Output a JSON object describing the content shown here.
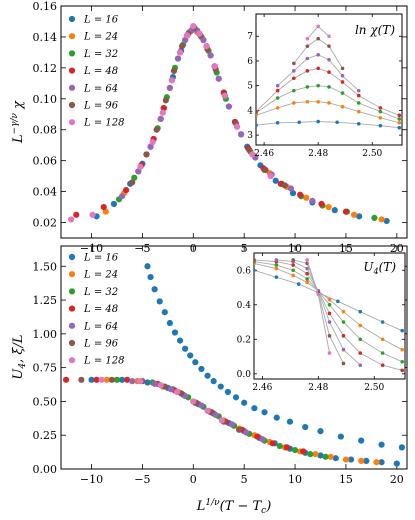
{
  "colors": [
    "#1f77b4",
    "#ff7f0e",
    "#2ca02c",
    "#d62728",
    "#9467bd",
    "#8c564b",
    "#e377c2"
  ],
  "legend_labels": [
    "L = 16",
    "L = 24",
    "L = 32",
    "L = 48",
    "L = 64",
    "L = 96",
    "L = 128"
  ],
  "x_label": "L^{1/ν}(T − T_c)",
  "chart_data": [
    {
      "id": "top-main",
      "type": "scatter",
      "ylabel": "L^{−γ/ν} χ",
      "xlim": [
        -13,
        21
      ],
      "ylim": [
        0.01,
        0.16
      ],
      "xticks": [
        -10,
        -5,
        0,
        5,
        10,
        15,
        20
      ],
      "yticks": [
        0.02,
        0.04,
        0.06,
        0.08,
        0.1,
        0.12,
        0.14,
        0.16
      ],
      "ytick_labels": [
        "0.02",
        "0.04",
        "0.06",
        "0.08",
        "0.10",
        "0.12",
        "0.14",
        "0.16"
      ],
      "legend": "top-left",
      "series": [
        {
          "name": "L = 16",
          "x": [
            -9.5,
            -7.8,
            -6.2,
            -5.0,
            -3.9,
            -2.9,
            -2.0,
            -1.2,
            -0.6,
            0.0,
            0.6,
            1.3,
            2.1,
            3.0,
            4.1,
            5.3,
            6.6,
            8.1,
            9.8,
            11.7,
            13.9,
            16.3,
            19.0
          ],
          "y": [
            0.024,
            0.032,
            0.045,
            0.058,
            0.074,
            0.094,
            0.114,
            0.131,
            0.141,
            0.145,
            0.142,
            0.134,
            0.121,
            0.104,
            0.085,
            0.069,
            0.057,
            0.047,
            0.039,
            0.033,
            0.028,
            0.024,
            0.021
          ]
        },
        {
          "name": "L = 24",
          "x": [
            -8.6,
            -6.8,
            -5.4,
            -4.2,
            -3.2,
            -2.3,
            -1.5,
            -0.8,
            -0.2,
            0.4,
            1.0,
            1.7,
            2.5,
            3.5,
            4.7,
            6.0,
            7.5,
            9.2,
            11.1,
            13.3,
            15.8,
            18.5
          ],
          "y": [
            0.027,
            0.039,
            0.053,
            0.069,
            0.087,
            0.107,
            0.126,
            0.138,
            0.144,
            0.143,
            0.138,
            0.128,
            0.113,
            0.095,
            0.077,
            0.063,
            0.052,
            0.043,
            0.036,
            0.03,
            0.025,
            0.022
          ]
        },
        {
          "name": "L = 32",
          "x": [
            -7.3,
            -5.8,
            -4.6,
            -3.5,
            -2.6,
            -1.8,
            -1.0,
            -0.4,
            0.2,
            0.8,
            1.5,
            2.3,
            3.2,
            4.3,
            5.6,
            7.0,
            8.7,
            10.6,
            12.7,
            15.1,
            17.8
          ],
          "y": [
            0.035,
            0.049,
            0.064,
            0.081,
            0.101,
            0.12,
            0.135,
            0.143,
            0.145,
            0.14,
            0.131,
            0.117,
            0.1,
            0.082,
            0.066,
            0.054,
            0.045,
            0.037,
            0.031,
            0.027,
            0.023
          ]
        },
        {
          "name": "L = 48",
          "x": [
            -11.5,
            -8.8,
            -6.6,
            -5.1,
            -3.9,
            -2.9,
            -2.1,
            -1.3,
            -0.6,
            0.0,
            0.6,
            1.3,
            2.1,
            3.0,
            4.1,
            5.4,
            6.9,
            8.6,
            10.5,
            12.6,
            15.0
          ],
          "y": [
            0.025,
            0.03,
            0.041,
            0.057,
            0.074,
            0.094,
            0.112,
            0.13,
            0.141,
            0.146,
            0.142,
            0.134,
            0.121,
            0.104,
            0.085,
            0.068,
            0.055,
            0.045,
            0.038,
            0.032,
            0.027
          ]
        },
        {
          "name": "L = 64",
          "x": [
            -7.0,
            -5.4,
            -4.2,
            -3.2,
            -2.3,
            -1.5,
            -0.8,
            -0.2,
            0.4,
            1.0,
            1.7,
            2.5,
            3.5,
            4.7,
            6.1,
            7.7,
            9.6,
            11.7
          ],
          "y": [
            0.037,
            0.053,
            0.069,
            0.087,
            0.107,
            0.126,
            0.138,
            0.144,
            0.144,
            0.138,
            0.128,
            0.113,
            0.095,
            0.077,
            0.062,
            0.051,
            0.042,
            0.034
          ]
        },
        {
          "name": "L = 96",
          "x": [
            -6.0,
            -4.6,
            -3.6,
            -2.7,
            -1.9,
            -1.1,
            -0.5,
            0.1,
            0.7,
            1.4,
            2.2,
            3.1,
            4.2,
            5.5,
            7.1,
            9.0
          ],
          "y": [
            0.046,
            0.064,
            0.08,
            0.099,
            0.118,
            0.134,
            0.142,
            0.146,
            0.141,
            0.132,
            0.119,
            0.102,
            0.084,
            0.067,
            0.054,
            0.044
          ]
        },
        {
          "name": "L = 128",
          "x": [
            -12.0,
            -9.9,
            -5.2,
            -4.0,
            -3.0,
            -2.1,
            -1.3,
            -0.6,
            0.0,
            0.6,
            1.3,
            2.1,
            3.1,
            4.3,
            5.8,
            7.6
          ],
          "y": [
            0.022,
            0.025,
            0.056,
            0.072,
            0.091,
            0.112,
            0.13,
            0.141,
            0.147,
            0.142,
            0.134,
            0.121,
            0.102,
            0.082,
            0.064,
            0.05
          ]
        }
      ]
    },
    {
      "id": "top-inset",
      "type": "line",
      "title": "ln χ(T)",
      "xlim": [
        2.457,
        2.511
      ],
      "ylim": [
        2.6,
        7.9
      ],
      "xticks": [
        2.46,
        2.48,
        2.5
      ],
      "xtick_labels": [
        "2.46",
        "2.48",
        "2.50"
      ],
      "yticks": [
        3,
        4,
        5,
        6,
        7
      ],
      "markers": true,
      "series": [
        {
          "name": "L = 16",
          "x": [
            2.457,
            2.465,
            2.473,
            2.48,
            2.487,
            2.495,
            2.503,
            2.51
          ],
          "y": [
            3.4,
            3.5,
            3.52,
            3.55,
            3.52,
            3.46,
            3.38,
            3.3
          ]
        },
        {
          "name": "L = 24",
          "x": [
            2.457,
            2.465,
            2.471,
            2.476,
            2.48,
            2.484,
            2.489,
            2.495,
            2.503,
            2.51
          ],
          "y": [
            3.8,
            4.1,
            4.3,
            4.35,
            4.35,
            4.3,
            4.15,
            3.95,
            3.7,
            3.5
          ]
        },
        {
          "name": "L = 32",
          "x": [
            2.457,
            2.465,
            2.471,
            2.476,
            2.48,
            2.484,
            2.489,
            2.495,
            2.503,
            2.51
          ],
          "y": [
            3.9,
            4.5,
            4.8,
            4.95,
            5.0,
            4.95,
            4.7,
            4.3,
            3.95,
            3.65
          ]
        },
        {
          "name": "L = 48",
          "x": [
            2.457,
            2.465,
            2.471,
            2.476,
            2.48,
            2.484,
            2.489,
            2.495,
            2.503,
            2.51
          ],
          "y": [
            3.95,
            4.8,
            5.3,
            5.6,
            5.7,
            5.55,
            5.15,
            4.6,
            4.1,
            3.8
          ]
        },
        {
          "name": "L = 64",
          "x": [
            2.465,
            2.471,
            2.476,
            2.48,
            2.484,
            2.489,
            2.495
          ],
          "y": [
            5.0,
            5.6,
            6.1,
            6.25,
            6.05,
            5.4,
            4.8
          ]
        },
        {
          "name": "L = 96",
          "x": [
            2.471,
            2.476,
            2.48,
            2.484,
            2.489
          ],
          "y": [
            5.9,
            6.6,
            6.9,
            6.6,
            5.7
          ]
        },
        {
          "name": "L = 128",
          "x": [
            2.476,
            2.48,
            2.484
          ],
          "y": [
            6.9,
            7.4,
            7.0
          ]
        }
      ]
    },
    {
      "id": "bottom-main",
      "type": "scatter",
      "ylabel": "U_4, ξ/L",
      "xlim": [
        -13,
        21
      ],
      "ylim": [
        0.0,
        1.65
      ],
      "xticks": [
        -10,
        -5,
        0,
        5,
        10,
        15,
        20
      ],
      "yticks": [
        0.0,
        0.25,
        0.5,
        0.75,
        1.0,
        1.25,
        1.5
      ],
      "ytick_labels": [
        "0.00",
        "0.25",
        "0.50",
        "0.75",
        "1.00",
        "1.25",
        "1.50"
      ],
      "legend": "top-left",
      "series": [
        {
          "name": "L = 16",
          "x": [
            -10.0,
            -7.0,
            -4.5,
            -2.5,
            -1.0,
            0.5,
            2.0,
            3.5,
            5.0,
            6.5,
            8.0,
            9.5,
            11.0,
            12.5,
            14.0,
            15.5,
            17.0,
            18.5,
            20.0
          ],
          "y": [
            0.66,
            0.66,
            0.64,
            0.6,
            0.55,
            0.48,
            0.41,
            0.34,
            0.28,
            0.23,
            0.19,
            0.15,
            0.12,
            0.1,
            0.08,
            0.07,
            0.06,
            0.05,
            0.04
          ]
        },
        {
          "name": "L = 24",
          "x": [
            -8.5,
            -5.5,
            -3.0,
            -1.5,
            0.0,
            1.5,
            3.0,
            4.5,
            6.0,
            7.5,
            9.0,
            10.5,
            12.0,
            13.5,
            15.0,
            16.5,
            18.0
          ],
          "y": [
            0.66,
            0.65,
            0.61,
            0.57,
            0.5,
            0.43,
            0.36,
            0.3,
            0.25,
            0.2,
            0.16,
            0.13,
            0.11,
            0.09,
            0.07,
            0.06,
            0.05
          ]
        },
        {
          "name": "L = 32",
          "x": [
            -7.5,
            -4.0,
            -2.0,
            -0.5,
            1.0,
            2.5,
            4.0,
            5.5,
            7.0,
            8.5,
            10.0,
            11.5,
            13.0
          ],
          "y": [
            0.66,
            0.64,
            0.59,
            0.53,
            0.46,
            0.39,
            0.32,
            0.26,
            0.21,
            0.17,
            0.14,
            0.11,
            0.09
          ]
        },
        {
          "name": "L = 48",
          "x": [
            -12.5,
            -9.5,
            -6.5,
            -3.5,
            -1.8,
            0.2,
            1.8,
            3.2,
            4.8,
            6.3,
            7.8,
            9.2,
            10.8
          ],
          "y": [
            0.66,
            0.66,
            0.66,
            0.63,
            0.58,
            0.49,
            0.42,
            0.35,
            0.29,
            0.24,
            0.19,
            0.16,
            0.13
          ]
        },
        {
          "name": "L = 64",
          "x": [
            -6.0,
            -3.8,
            -2.2,
            -0.8,
            0.8,
            2.2,
            3.8,
            5.2,
            6.8
          ],
          "y": [
            0.65,
            0.63,
            0.59,
            0.54,
            0.47,
            0.4,
            0.33,
            0.27,
            0.22
          ]
        },
        {
          "name": "L = 96",
          "x": [
            -11.0,
            -8.0,
            -5.0,
            -2.8,
            -1.2,
            0.3,
            1.7,
            3.0,
            4.5
          ],
          "y": [
            0.66,
            0.66,
            0.65,
            0.61,
            0.56,
            0.49,
            0.42,
            0.35,
            0.29
          ]
        },
        {
          "name": "L = 128",
          "x": [
            -9.0,
            -5.2,
            -3.2,
            -1.6,
            0.0,
            1.4,
            2.8
          ],
          "y": [
            0.66,
            0.65,
            0.62,
            0.57,
            0.5,
            0.43,
            0.36
          ]
        },
        {
          "name": "ξ/L",
          "x": [
            -4.5,
            -4.2,
            -3.8,
            -3.3,
            -2.8,
            -2.3,
            -1.8,
            -1.3,
            -0.8,
            -0.3,
            0.2,
            0.8,
            1.4,
            2.0,
            2.7,
            3.4,
            4.2,
            5.0,
            6.0,
            7.0,
            8.2,
            9.5,
            11.0,
            12.5,
            14.5,
            16.5,
            18.5,
            20.5
          ],
          "y": [
            1.5,
            1.42,
            1.33,
            1.24,
            1.16,
            1.08,
            1.01,
            0.95,
            0.89,
            0.84,
            0.79,
            0.74,
            0.69,
            0.65,
            0.61,
            0.57,
            0.53,
            0.49,
            0.45,
            0.42,
            0.38,
            0.35,
            0.31,
            0.28,
            0.24,
            0.21,
            0.18,
            0.16
          ]
        }
      ]
    },
    {
      "id": "bottom-inset",
      "type": "line",
      "title": "U_4(T)",
      "xlim": [
        2.457,
        2.511
      ],
      "ylim": [
        -0.03,
        0.7
      ],
      "xticks": [
        2.46,
        2.48,
        2.5
      ],
      "xtick_labels": [
        "2.46",
        "2.48",
        "2.50"
      ],
      "yticks": [
        0.0,
        0.2,
        0.4,
        0.6
      ],
      "ytick_labels": [
        "0.0",
        "0.2",
        "0.4",
        "0.6"
      ],
      "markers": true,
      "series": [
        {
          "name": "L = 16",
          "x": [
            2.457,
            2.465,
            2.473,
            2.48,
            2.487,
            2.495,
            2.503,
            2.51
          ],
          "y": [
            0.6,
            0.56,
            0.52,
            0.47,
            0.42,
            0.36,
            0.3,
            0.25
          ]
        },
        {
          "name": "L = 24",
          "x": [
            2.457,
            2.465,
            2.471,
            2.476,
            2.48,
            2.484,
            2.489,
            2.495,
            2.503,
            2.51
          ],
          "y": [
            0.64,
            0.61,
            0.57,
            0.53,
            0.48,
            0.43,
            0.36,
            0.28,
            0.2,
            0.14
          ]
        },
        {
          "name": "L = 32",
          "x": [
            2.457,
            2.465,
            2.471,
            2.476,
            2.48,
            2.484,
            2.489,
            2.495,
            2.503,
            2.51
          ],
          "y": [
            0.65,
            0.63,
            0.6,
            0.55,
            0.48,
            0.4,
            0.3,
            0.2,
            0.12,
            0.07
          ]
        },
        {
          "name": "L = 48",
          "x": [
            2.457,
            2.465,
            2.471,
            2.476,
            2.48,
            2.484,
            2.489,
            2.495,
            2.503,
            2.51
          ],
          "y": [
            0.66,
            0.65,
            0.63,
            0.58,
            0.48,
            0.35,
            0.22,
            0.12,
            0.05,
            0.02
          ]
        },
        {
          "name": "L = 64",
          "x": [
            2.465,
            2.471,
            2.476,
            2.48,
            2.484,
            2.489,
            2.495
          ],
          "y": [
            0.66,
            0.65,
            0.61,
            0.48,
            0.3,
            0.14,
            0.05
          ]
        },
        {
          "name": "L = 96",
          "x": [
            2.471,
            2.476,
            2.48,
            2.484,
            2.489
          ],
          "y": [
            0.66,
            0.64,
            0.47,
            0.22,
            0.06
          ]
        },
        {
          "name": "L = 128",
          "x": [
            2.476,
            2.48,
            2.484
          ],
          "y": [
            0.66,
            0.46,
            0.12
          ]
        }
      ]
    }
  ]
}
